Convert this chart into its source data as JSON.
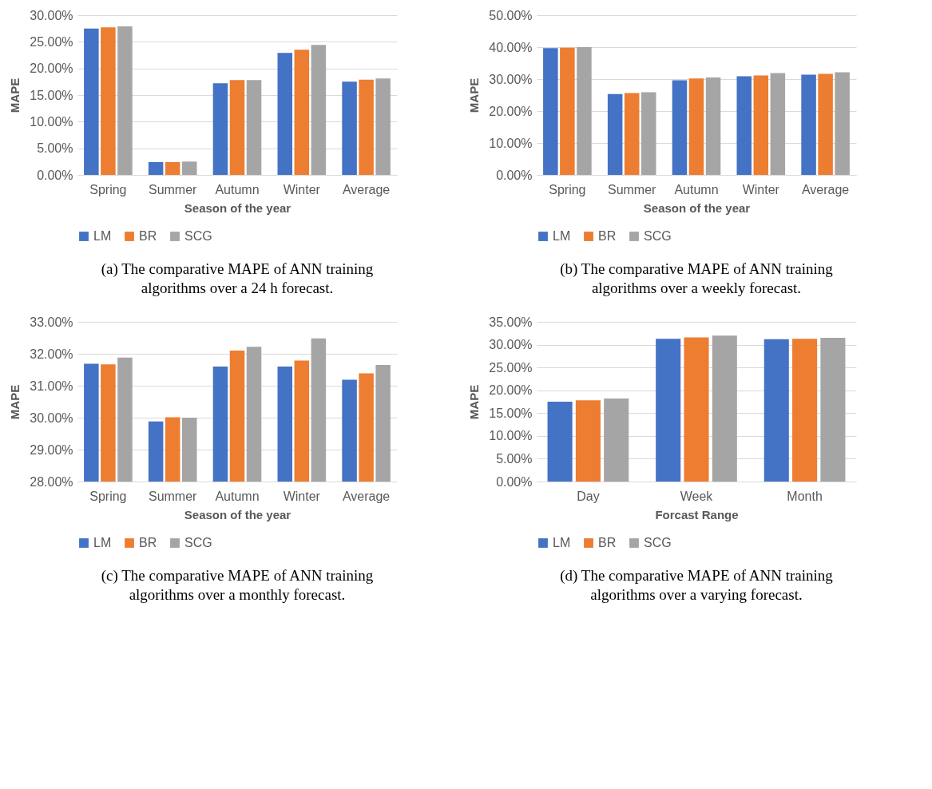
{
  "chart_data": [
    {
      "type": "bar",
      "categories": [
        "Spring",
        "Summer",
        "Autumn",
        "Winter",
        "Average"
      ],
      "xlabel": "Season of the year",
      "ylabel": "MAPE",
      "ylim": [
        0,
        30
      ],
      "yticks": [
        {
          "value": 0,
          "label": "0.00%"
        },
        {
          "value": 5,
          "label": "5.00%"
        },
        {
          "value": 10,
          "label": "10.00%"
        },
        {
          "value": 15,
          "label": "15.00%"
        },
        {
          "value": 20,
          "label": "20.00%"
        },
        {
          "value": 25,
          "label": "25.00%"
        },
        {
          "value": 30,
          "label": "30.00%"
        }
      ],
      "grid": "y",
      "legend": "bottom",
      "series": [
        {
          "name": "LM",
          "color": "#4472c4",
          "values": [
            27.5,
            2.4,
            17.2,
            22.9,
            17.5
          ]
        },
        {
          "name": "BR",
          "color": "#ed7d31",
          "values": [
            27.7,
            2.4,
            17.8,
            23.5,
            17.9
          ]
        },
        {
          "name": "SCG",
          "color": "#a5a5a5",
          "values": [
            27.9,
            2.5,
            17.8,
            24.4,
            18.1
          ]
        }
      ],
      "annotations": [
        "(a) The comparative MAPE of ANN training algorithms over a 24 h forecast."
      ]
    },
    {
      "type": "bar",
      "categories": [
        "Spring",
        "Summer",
        "Autumn",
        "Winter",
        "Average"
      ],
      "xlabel": "Season of the year",
      "ylabel": "MAPE",
      "ylim": [
        0,
        50
      ],
      "yticks": [
        {
          "value": 0,
          "label": "0.00%"
        },
        {
          "value": 10,
          "label": "10.00%"
        },
        {
          "value": 20,
          "label": "20.00%"
        },
        {
          "value": 30,
          "label": "30.00%"
        },
        {
          "value": 40,
          "label": "40.00%"
        },
        {
          "value": 50,
          "label": "50.00%"
        }
      ],
      "grid": "y",
      "legend": "bottom",
      "series": [
        {
          "name": "LM",
          "color": "#4472c4",
          "values": [
            39.7,
            25.3,
            29.6,
            30.9,
            31.4
          ]
        },
        {
          "name": "BR",
          "color": "#ed7d31",
          "values": [
            39.8,
            25.6,
            30.2,
            31.1,
            31.6
          ]
        },
        {
          "name": "SCG",
          "color": "#a5a5a5",
          "values": [
            40.0,
            25.9,
            30.5,
            31.9,
            32.1
          ]
        }
      ],
      "annotations": [
        "(b) The comparative MAPE of ANN training algorithms over a weekly forecast."
      ]
    },
    {
      "type": "bar",
      "categories": [
        "Spring",
        "Summer",
        "Autumn",
        "Winter",
        "Average"
      ],
      "xlabel": "Season of the year",
      "ylabel": "MAPE",
      "ylim": [
        28,
        33
      ],
      "yticks": [
        {
          "value": 28,
          "label": "28.00%"
        },
        {
          "value": 29,
          "label": "29.00%"
        },
        {
          "value": 30,
          "label": "30.00%"
        },
        {
          "value": 31,
          "label": "31.00%"
        },
        {
          "value": 32,
          "label": "32.00%"
        },
        {
          "value": 33,
          "label": "33.00%"
        }
      ],
      "grid": "y",
      "legend": "bottom",
      "series": [
        {
          "name": "LM",
          "color": "#4472c4",
          "values": [
            31.69,
            29.88,
            31.6,
            31.6,
            31.19
          ]
        },
        {
          "name": "BR",
          "color": "#ed7d31",
          "values": [
            31.67,
            30.01,
            32.1,
            31.79,
            31.39
          ]
        },
        {
          "name": "SCG",
          "color": "#a5a5a5",
          "values": [
            31.88,
            30.0,
            32.22,
            32.48,
            31.65
          ]
        }
      ],
      "annotations": [
        "(c) The comparative MAPE of ANN training algorithms over a monthly forecast."
      ]
    },
    {
      "type": "bar",
      "categories": [
        "Day",
        "Week",
        "Month"
      ],
      "xlabel": "Forcast Range",
      "ylabel": "MAPE",
      "ylim": [
        0,
        35
      ],
      "yticks": [
        {
          "value": 0,
          "label": "0.00%"
        },
        {
          "value": 5,
          "label": "5.00%"
        },
        {
          "value": 10,
          "label": "10.00%"
        },
        {
          "value": 15,
          "label": "15.00%"
        },
        {
          "value": 20,
          "label": "20.00%"
        },
        {
          "value": 25,
          "label": "25.00%"
        },
        {
          "value": 30,
          "label": "30.00%"
        },
        {
          "value": 35,
          "label": "35.00%"
        }
      ],
      "grid": "y",
      "legend": "bottom",
      "series": [
        {
          "name": "LM",
          "color": "#4472c4",
          "values": [
            17.5,
            31.3,
            31.2
          ]
        },
        {
          "name": "BR",
          "color": "#ed7d31",
          "values": [
            17.8,
            31.6,
            31.3
          ]
        },
        {
          "name": "SCG",
          "color": "#a5a5a5",
          "values": [
            18.2,
            32.0,
            31.5
          ]
        }
      ],
      "annotations": [
        "(d) The comparative MAPE of ANN training algorithms over a varying forecast."
      ]
    }
  ]
}
